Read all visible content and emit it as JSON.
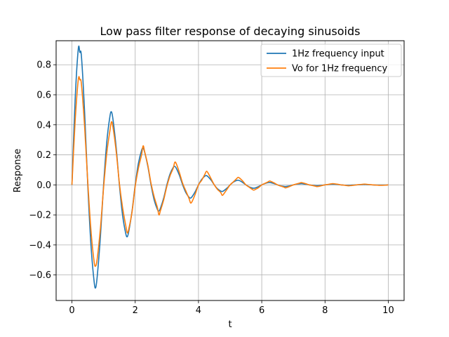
{
  "chart_data": {
    "type": "line",
    "title": "Low pass filter response of decaying sinusoids",
    "xlabel": "t",
    "ylabel": "Response",
    "xlim": [
      -0.5,
      10.5
    ],
    "ylim": [
      -0.77,
      0.96
    ],
    "x_ticks": [
      0,
      2,
      4,
      6,
      8,
      10
    ],
    "y_ticks": [
      -0.6,
      -0.4,
      -0.2,
      0.0,
      0.2,
      0.4,
      0.6,
      0.8
    ],
    "x_tick_labels": [
      "0",
      "2",
      "4",
      "6",
      "8",
      "10"
    ],
    "y_tick_labels": [
      "−0.6",
      "−0.4",
      "−0.2",
      "0.0",
      "0.2",
      "0.4",
      "0.6",
      "0.8"
    ],
    "grid": true,
    "legend_position": "top-right",
    "series": [
      {
        "name": "1Hz frequency input",
        "color": "#1f77b4",
        "x": [
          0,
          0.1,
          0.2,
          0.25,
          0.3,
          0.4,
          0.5,
          0.6,
          0.7,
          0.75,
          0.8,
          0.9,
          1.0,
          1.1,
          1.2,
          1.25,
          1.3,
          1.4,
          1.5,
          1.6,
          1.7,
          1.75,
          1.8,
          1.9,
          2.0,
          2.1,
          2.2,
          2.25,
          2.3,
          2.4,
          2.5,
          2.6,
          2.7,
          2.75,
          2.8,
          2.9,
          3.0,
          3.1,
          3.2,
          3.25,
          3.3,
          3.4,
          3.5,
          3.6,
          3.7,
          3.75,
          3.8,
          3.9,
          4.0,
          4.1,
          4.2,
          4.25,
          4.3,
          4.4,
          4.5,
          4.6,
          4.7,
          4.75,
          4.8,
          4.9,
          5.0,
          5.1,
          5.2,
          5.25,
          5.3,
          5.4,
          5.5,
          5.6,
          5.7,
          5.75,
          5.8,
          5.9,
          6.0,
          6.1,
          6.2,
          6.25,
          6.3,
          6.4,
          6.5,
          6.6,
          6.7,
          6.75,
          6.8,
          6.9,
          7.0,
          7.1,
          7.2,
          7.25,
          7.3,
          7.4,
          7.5,
          7.6,
          7.7,
          7.75,
          7.8,
          7.9,
          8.0,
          8.1,
          8.2,
          8.25,
          8.3,
          8.4,
          8.5,
          8.6,
          8.7,
          8.75,
          8.8,
          8.9,
          9.0,
          9.1,
          9.2,
          9.25,
          9.3,
          9.4,
          9.5,
          9.6,
          9.7,
          9.75,
          9.8,
          9.9,
          10.0
        ],
        "y": [
          0,
          0.561,
          0.904,
          0.882,
          0.856,
          0.486,
          0,
          -0.398,
          -0.642,
          -0.685,
          -0.608,
          -0.345,
          0,
          0.283,
          0.455,
          0.486,
          0.432,
          0.245,
          0,
          -0.201,
          -0.323,
          -0.345,
          -0.306,
          -0.174,
          0,
          0.142,
          0.229,
          0.245,
          0.217,
          0.123,
          0,
          -0.101,
          -0.163,
          -0.174,
          -0.154,
          -0.088,
          0,
          0.072,
          0.116,
          0.123,
          0.11,
          0.062,
          0,
          -0.051,
          -0.082,
          -0.088,
          -0.078,
          -0.044,
          0,
          0.036,
          0.058,
          0.062,
          0.055,
          0.031,
          0,
          -0.026,
          -0.041,
          -0.044,
          -0.039,
          -0.022,
          0,
          0.018,
          0.029,
          0.031,
          0.028,
          0.016,
          0,
          -0.013,
          -0.021,
          -0.022,
          -0.02,
          -0.011,
          0,
          0.009,
          0.015,
          0.016,
          0.014,
          0.008,
          0,
          -0.007,
          -0.01,
          -0.011,
          -0.01,
          -0.006,
          0,
          0.005,
          0.007,
          0.008,
          0.007,
          0.004,
          0,
          -0.003,
          -0.005,
          -0.006,
          -0.005,
          -0.003,
          0,
          0.002,
          0.004,
          0.004,
          0.004,
          0.002,
          0,
          -0.002,
          -0.003,
          -0.003,
          -0.002,
          -0.001,
          0,
          0.001,
          0.002,
          0.002,
          0.002,
          0.001,
          0,
          -0.001,
          -0.001,
          -0.001,
          -0.001,
          -0.001,
          0
        ]
      },
      {
        "name": "Vo for 1Hz frequency",
        "color": "#ff7f0e",
        "x": [
          0,
          0.1,
          0.2,
          0.25,
          0.3,
          0.4,
          0.5,
          0.6,
          0.7,
          0.75,
          0.8,
          0.9,
          1.0,
          1.1,
          1.2,
          1.25,
          1.3,
          1.4,
          1.5,
          1.6,
          1.7,
          1.75,
          1.8,
          1.9,
          2.0,
          2.1,
          2.2,
          2.25,
          2.3,
          2.4,
          2.5,
          2.6,
          2.7,
          2.75,
          2.8,
          2.9,
          3.0,
          3.1,
          3.2,
          3.25,
          3.3,
          3.4,
          3.5,
          3.6,
          3.7,
          3.75,
          3.8,
          3.9,
          4.0,
          4.1,
          4.2,
          4.25,
          4.3,
          4.4,
          4.5,
          4.6,
          4.7,
          4.75,
          4.8,
          4.9,
          5.0,
          5.1,
          5.2,
          5.25,
          5.3,
          5.4,
          5.5,
          5.6,
          5.7,
          5.75,
          5.8,
          5.9,
          6.0,
          6.1,
          6.2,
          6.25,
          6.3,
          6.4,
          6.5,
          6.6,
          6.7,
          6.75,
          6.8,
          6.9,
          7.0,
          7.1,
          7.2,
          7.25,
          7.3,
          7.4,
          7.5,
          7.6,
          7.7,
          7.75,
          7.8,
          7.9,
          8.0,
          8.1,
          8.2,
          8.25,
          8.3,
          8.4,
          8.5,
          8.6,
          8.7,
          8.75,
          8.8,
          8.9,
          9.0,
          9.1,
          9.2,
          9.25,
          9.3,
          9.4,
          9.5,
          9.6,
          9.7,
          9.75,
          9.8,
          9.9,
          10.0
        ],
        "y": [
          0,
          0.42,
          0.7,
          0.7,
          0.67,
          0.39,
          0.02,
          -0.3,
          -0.51,
          -0.54,
          -0.49,
          -0.29,
          -0.02,
          0.21,
          0.36,
          0.42,
          0.38,
          0.22,
          0.01,
          -0.15,
          -0.27,
          -0.32,
          -0.29,
          -0.18,
          -0.01,
          0.11,
          0.2,
          0.26,
          0.22,
          0.13,
          0.01,
          -0.08,
          -0.15,
          -0.2,
          -0.17,
          -0.1,
          -0.01,
          0.06,
          0.11,
          0.15,
          0.14,
          0.08,
          0.01,
          -0.04,
          -0.09,
          -0.12,
          -0.11,
          -0.06,
          0.0,
          0.03,
          0.07,
          0.09,
          0.08,
          0.04,
          0.0,
          -0.03,
          -0.05,
          -0.07,
          -0.06,
          -0.03,
          0.0,
          0.02,
          0.04,
          0.05,
          0.045,
          0.025,
          0.0,
          -0.015,
          -0.03,
          -0.035,
          -0.03,
          -0.018,
          0.0,
          0.01,
          0.02,
          0.026,
          0.022,
          0.012,
          0.0,
          -0.008,
          -0.015,
          -0.02,
          -0.017,
          -0.009,
          0.0,
          0.006,
          0.012,
          0.015,
          0.013,
          0.007,
          0.0,
          -0.004,
          -0.009,
          -0.011,
          -0.01,
          -0.005,
          0.0,
          0.003,
          0.007,
          0.008,
          0.007,
          0.004,
          0.0,
          -0.002,
          -0.005,
          -0.006,
          -0.005,
          -0.003,
          0.0,
          0.002,
          0.004,
          0.005,
          0.004,
          0.002,
          0.0,
          -0.001,
          -0.003,
          -0.003,
          -0.003,
          -0.002,
          0.0
        ]
      }
    ]
  }
}
